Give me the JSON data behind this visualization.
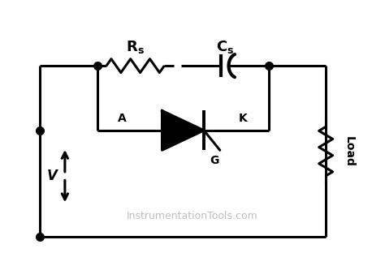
{
  "background_color": "#ffffff",
  "line_color": "#000000",
  "line_width": 2.2,
  "dot_size": 7,
  "fig_width": 4.74,
  "fig_height": 3.17,
  "watermark": "InstrumentationTools.com",
  "watermark_color": "#aaaaaa",
  "watermark_fontsize": 9,
  "label_A": "A",
  "label_K": "K",
  "label_G": "G",
  "label_V": "V",
  "label_Load": "Load",
  "xlim": [
    0,
    10
  ],
  "ylim": [
    0,
    6.7
  ]
}
